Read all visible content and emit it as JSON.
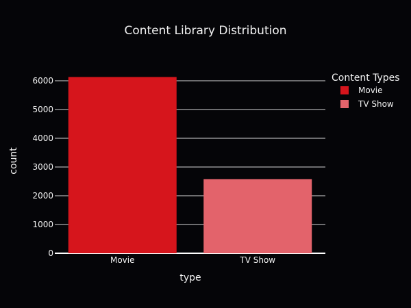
{
  "chart_data": {
    "type": "bar",
    "title": "Content Library Distribution",
    "xlabel": "type",
    "ylabel": "count",
    "categories": [
      "Movie",
      "TV Show"
    ],
    "values": [
      6131,
      2576
    ],
    "colors": [
      "#d6151c",
      "#e3636b"
    ],
    "ylim": [
      0,
      6430
    ],
    "yticks": [
      0,
      1000,
      2000,
      3000,
      4000,
      5000,
      6000
    ],
    "grid": true,
    "legend": {
      "title": "Content Types",
      "placement": "top-right",
      "items": [
        "Movie",
        "TV Show"
      ]
    },
    "background": "#050508"
  }
}
